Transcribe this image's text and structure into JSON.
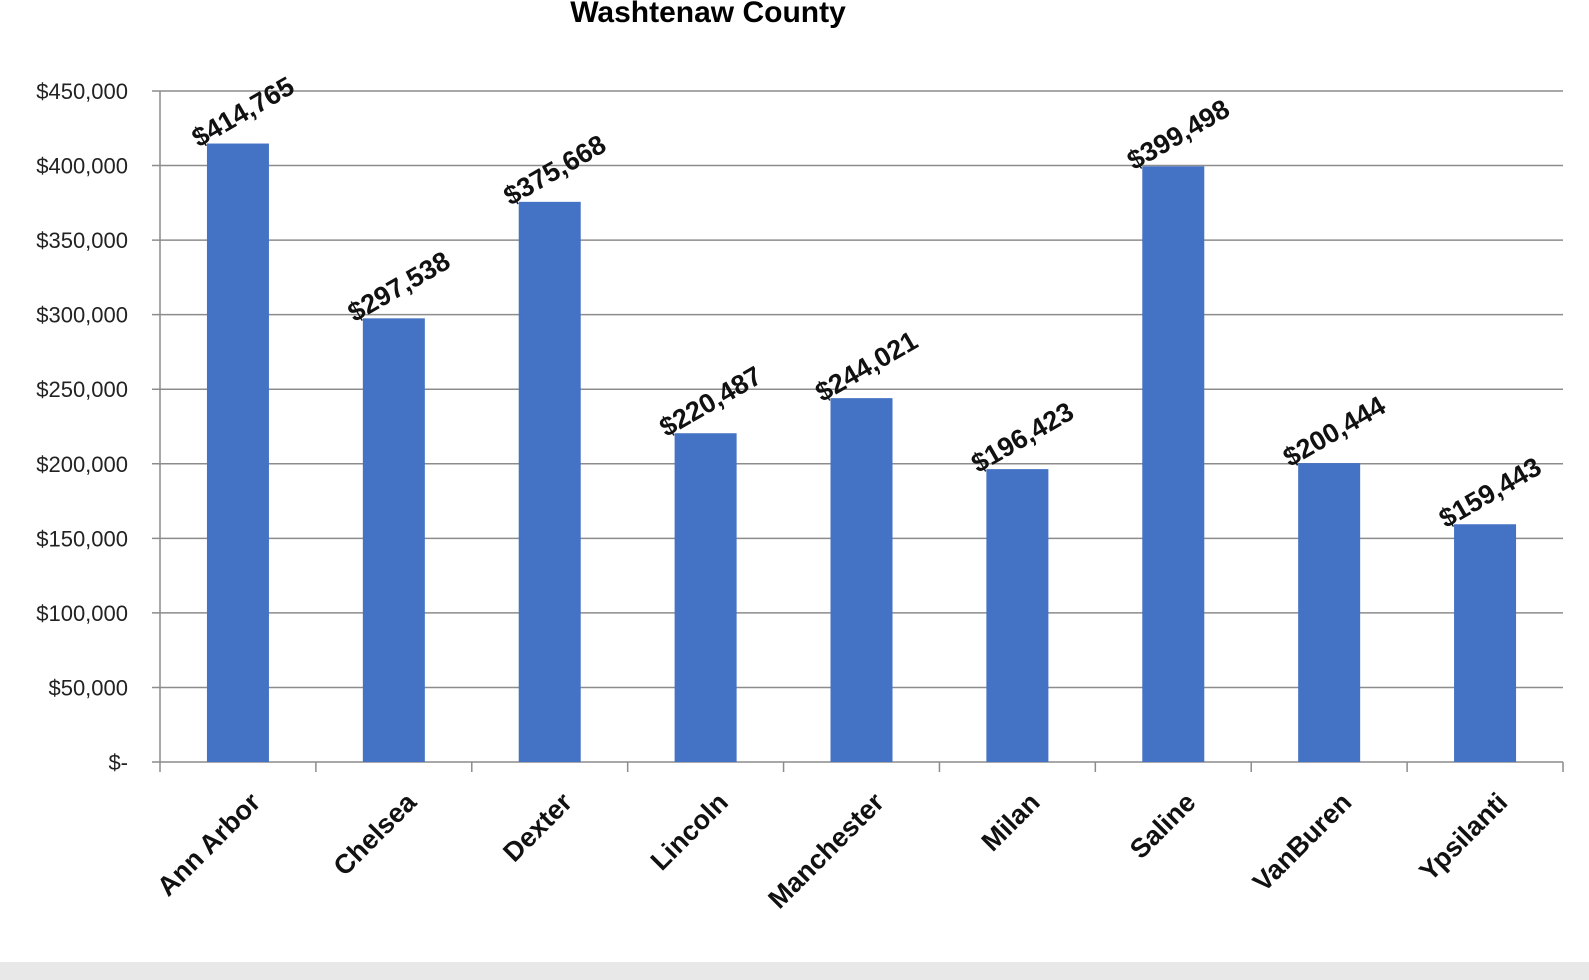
{
  "chart_data": {
    "type": "bar",
    "title": "Washtenaw County",
    "xlabel": "",
    "ylabel": "",
    "categories": [
      "Ann Arbor",
      "Chelsea",
      "Dexter",
      "Lincoln",
      "Manchester",
      "Milan",
      "Saline",
      "VanBuren",
      "Ypsilanti"
    ],
    "values": [
      414765,
      297538,
      375668,
      220487,
      244021,
      196423,
      399498,
      200444,
      159443
    ],
    "data_labels": [
      "$414,765",
      "$297,538",
      "$375,668",
      "$220,487",
      "$244,021",
      "$196,423",
      "$399,498",
      "$200,444",
      "$159,443"
    ],
    "ylim": [
      0,
      450000
    ],
    "yticks": [
      0,
      50000,
      100000,
      150000,
      200000,
      250000,
      300000,
      350000,
      400000,
      450000
    ],
    "ytick_labels": [
      "$-",
      "$50,000",
      "$100,000",
      "$150,000",
      "$200,000",
      "$250,000",
      "$300,000",
      "$350,000",
      "$400,000",
      "$450,000"
    ],
    "grid": true,
    "legend": "none",
    "bar_color": "#4472c4"
  }
}
